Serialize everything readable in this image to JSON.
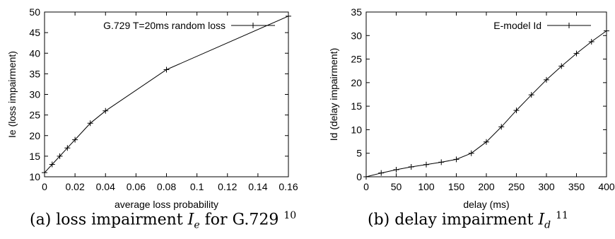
{
  "chart_data": [
    {
      "type": "line",
      "xlabel": "average loss probability",
      "ylabel": "Ie (loss impairment)",
      "xlim": [
        0,
        0.16
      ],
      "ylim": [
        10,
        50
      ],
      "xticks": [
        "0",
        "0.02",
        "0.04",
        "0.06",
        "0.08",
        "0.1",
        "0.12",
        "0.14",
        "0.16"
      ],
      "yticks": [
        "10",
        "15",
        "20",
        "25",
        "30",
        "35",
        "40",
        "45",
        "50"
      ],
      "legend_position": "top-right",
      "series": [
        {
          "name": "G.729 T=20ms random loss",
          "x": [
            0,
            0.005,
            0.01,
            0.015,
            0.02,
            0.03,
            0.04,
            0.08,
            0.16
          ],
          "y": [
            11,
            13,
            15,
            17,
            19,
            23,
            26,
            36,
            49
          ]
        }
      ],
      "caption": {
        "prefix": "(a) loss impairment ",
        "sym": "I",
        "sub": "e",
        "mid": " for G.729 ",
        "sup": "10"
      }
    },
    {
      "type": "line",
      "xlabel": "delay (ms)",
      "ylabel": "Id (delay impairment)",
      "xlim": [
        0,
        400
      ],
      "ylim": [
        0,
        35
      ],
      "xticks": [
        "0",
        "50",
        "100",
        "150",
        "200",
        "250",
        "300",
        "350",
        "400"
      ],
      "yticks": [
        "0",
        "5",
        "10",
        "15",
        "20",
        "25",
        "30",
        "35"
      ],
      "legend_position": "top-right",
      "series": [
        {
          "name": "E-model Id",
          "x": [
            0,
            25,
            50,
            75,
            100,
            125,
            150,
            175,
            200,
            225,
            250,
            275,
            300,
            325,
            350,
            375,
            400
          ],
          "y": [
            0,
            0.8,
            1.5,
            2.1,
            2.6,
            3.1,
            3.7,
            5.0,
            7.4,
            10.6,
            14.1,
            17.4,
            20.6,
            23.5,
            26.2,
            28.7,
            31.0
          ]
        }
      ],
      "caption": {
        "prefix": "(b) delay impairment ",
        "sym": "I",
        "sub": "d",
        "mid": " ",
        "sup": "11"
      }
    }
  ]
}
